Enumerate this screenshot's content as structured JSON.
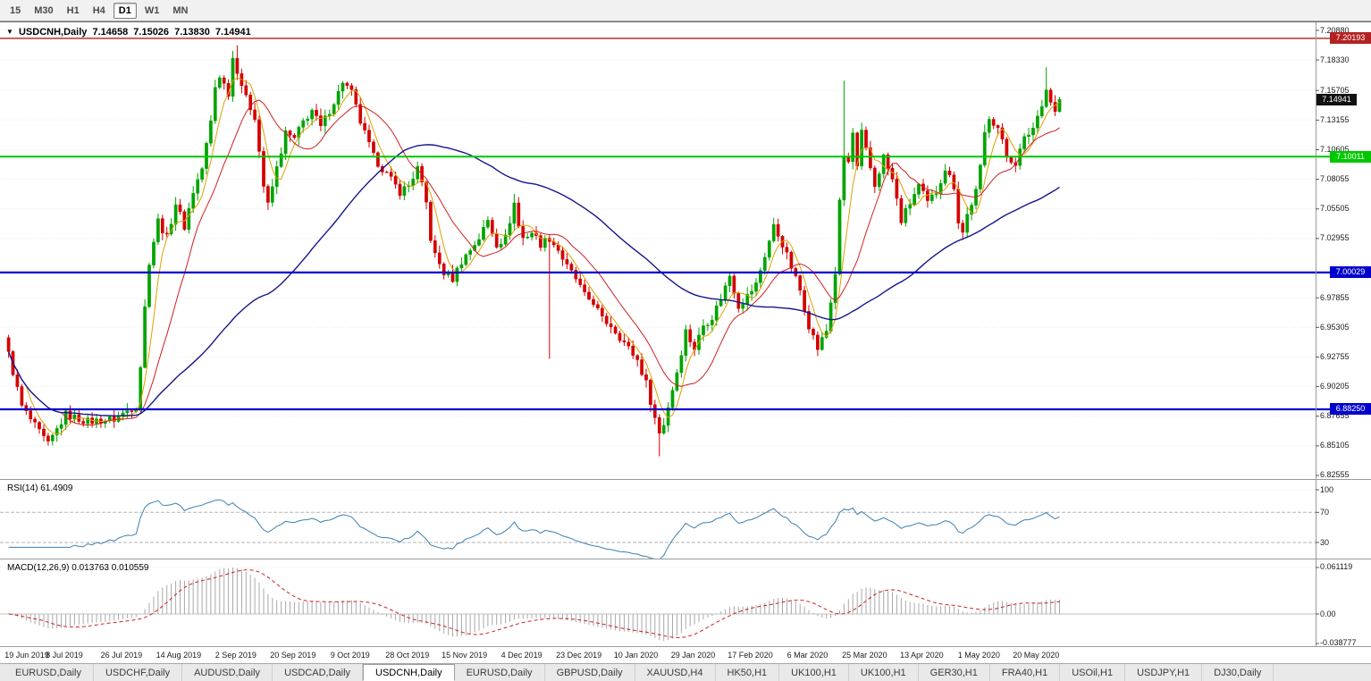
{
  "toolbar": {
    "periods": [
      "15",
      "M30",
      "H1",
      "H4",
      "D1",
      "W1",
      "MN"
    ],
    "active_period": "D1"
  },
  "chart_header": {
    "dropdown_glyph": "▼",
    "symbol": "USDCNH,Daily",
    "open": "7.14658",
    "high": "7.15026",
    "low": "7.13830",
    "close": "7.14941"
  },
  "price_scale": {
    "ticks": [
      "7.20880",
      "7.18330",
      "7.15705",
      "7.13155",
      "7.10605",
      "7.08055",
      "7.05505",
      "7.02955",
      "6.97855",
      "6.95305",
      "6.92755",
      "6.90205",
      "6.87655",
      "6.85105",
      "6.82555"
    ],
    "badges": [
      {
        "label": "7.20193",
        "color": "#b22222",
        "name": "resistance-level-badge"
      },
      {
        "label": "7.14941",
        "color": "#111111",
        "name": "current-price-badge"
      },
      {
        "label": "7.10011",
        "color": "#00c800",
        "name": "support-level-badge-green"
      },
      {
        "label": "7.00029",
        "color": "#0000cd",
        "name": "level-badge-blue-upper"
      },
      {
        "label": "6.88250",
        "color": "#0000cd",
        "name": "level-badge-blue-lower"
      }
    ]
  },
  "rsi_panel": {
    "label": "RSI(14) 61.4909",
    "ticks": [
      "100",
      "70",
      "30"
    ]
  },
  "macd_panel": {
    "label": "MACD(12,26,9) 0.013763 0.010559",
    "ticks": [
      "0.061119",
      "0.00",
      "-0.038777"
    ]
  },
  "time_axis": {
    "labels": [
      "19 Jun 2019",
      "8 Jul 2019",
      "26 Jul 2019",
      "14 Aug 2019",
      "2 Sep 2019",
      "20 Sep 2019",
      "9 Oct 2019",
      "28 Oct 2019",
      "15 Nov 2019",
      "4 Dec 2019",
      "23 Dec 2019",
      "10 Jan 2020",
      "29 Jan 2020",
      "17 Feb 2020",
      "6 Mar 2020",
      "25 Mar 2020",
      "13 Apr 2020",
      "1 May 2020",
      "20 May 2020"
    ]
  },
  "tabs": {
    "items": [
      "EURUSD,Daily",
      "USDCHF,Daily",
      "AUDUSD,Daily",
      "USDCAD,Daily",
      "USDCNH,Daily",
      "EURUSD,Daily",
      "GBPUSD,Daily",
      "XAUUSD,H4",
      "HK50,H1",
      "UK100,H1",
      "UK100,H1",
      "GER30,H1",
      "FRA40,H1",
      "USOil,H1",
      "USDJPY,H1",
      "DJ30,Daily"
    ],
    "active_index": 4
  },
  "chart_data": {
    "type": "candlestick",
    "symbol": "USDCNH",
    "timeframe": "Daily",
    "candle_count": 240,
    "visible_price_range": [
      6.82555,
      7.2088
    ],
    "ohlc_current": {
      "open": 7.14658,
      "high": 7.15026,
      "low": 7.1383,
      "close": 7.14941
    },
    "last_close": 7.14941,
    "horizontal_levels": [
      {
        "price": 7.20193,
        "color": "#b22222",
        "width": 1.4
      },
      {
        "price": 7.10011,
        "color": "#00c800",
        "width": 2
      },
      {
        "price": 7.00029,
        "color": "#0000cd",
        "width": 2.2
      },
      {
        "price": 6.8825,
        "color": "#0000cd",
        "width": 2.2
      }
    ],
    "close_anchors": [
      [
        0,
        6.93
      ],
      [
        3,
        6.885
      ],
      [
        6,
        6.868
      ],
      [
        9,
        6.852
      ],
      [
        13,
        6.878
      ],
      [
        18,
        6.872
      ],
      [
        24,
        6.874
      ],
      [
        29,
        6.886
      ],
      [
        30,
        6.92
      ],
      [
        31,
        6.97
      ],
      [
        32,
        7.01
      ],
      [
        34,
        7.045
      ],
      [
        36,
        7.03
      ],
      [
        38,
        7.06
      ],
      [
        40,
        7.04
      ],
      [
        42,
        7.07
      ],
      [
        44,
        7.09
      ],
      [
        46,
        7.13
      ],
      [
        47,
        7.16
      ],
      [
        48,
        7.17
      ],
      [
        50,
        7.155
      ],
      [
        51,
        7.185
      ],
      [
        52,
        7.175
      ],
      [
        54,
        7.15
      ],
      [
        56,
        7.135
      ],
      [
        58,
        7.075
      ],
      [
        59,
        7.058
      ],
      [
        61,
        7.09
      ],
      [
        63,
        7.12
      ],
      [
        65,
        7.115
      ],
      [
        67,
        7.13
      ],
      [
        69,
        7.14
      ],
      [
        71,
        7.125
      ],
      [
        73,
        7.14
      ],
      [
        75,
        7.155
      ],
      [
        76,
        7.165
      ],
      [
        78,
        7.155
      ],
      [
        80,
        7.13
      ],
      [
        83,
        7.1
      ],
      [
        86,
        7.085
      ],
      [
        89,
        7.07
      ],
      [
        91,
        7.075
      ],
      [
        93,
        7.09
      ],
      [
        95,
        7.06
      ],
      [
        96,
        7.03
      ],
      [
        97,
        7.015
      ],
      [
        99,
        7.0
      ],
      [
        101,
        6.995
      ],
      [
        103,
        7.01
      ],
      [
        105,
        7.02
      ],
      [
        107,
        7.03
      ],
      [
        109,
        7.045
      ],
      [
        111,
        7.025
      ],
      [
        113,
        7.03
      ],
      [
        115,
        7.06
      ],
      [
        116,
        7.04
      ],
      [
        117,
        7.03
      ],
      [
        119,
        7.035
      ],
      [
        121,
        7.025
      ],
      [
        123,
        7.03
      ],
      [
        125,
        7.02
      ],
      [
        127,
        7.005
      ],
      [
        129,
        6.995
      ],
      [
        131,
        6.98
      ],
      [
        133,
        6.975
      ],
      [
        135,
        6.96
      ],
      [
        137,
        6.955
      ],
      [
        139,
        6.945
      ],
      [
        141,
        6.935
      ],
      [
        143,
        6.925
      ],
      [
        145,
        6.905
      ],
      [
        147,
        6.875
      ],
      [
        148,
        6.862
      ],
      [
        149,
        6.87
      ],
      [
        150,
        6.885
      ],
      [
        151,
        6.9
      ],
      [
        152,
        6.915
      ],
      [
        153,
        6.932
      ],
      [
        154,
        6.95
      ],
      [
        155,
        6.942
      ],
      [
        156,
        6.935
      ],
      [
        158,
        6.955
      ],
      [
        160,
        6.962
      ],
      [
        162,
        6.978
      ],
      [
        164,
        6.998
      ],
      [
        165,
        6.985
      ],
      [
        166,
        6.972
      ],
      [
        168,
        6.98
      ],
      [
        170,
        6.99
      ],
      [
        172,
        7.015
      ],
      [
        174,
        7.04
      ],
      [
        176,
        7.025
      ],
      [
        178,
        7.005
      ],
      [
        180,
        6.985
      ],
      [
        182,
        6.955
      ],
      [
        184,
        6.935
      ],
      [
        186,
        6.95
      ],
      [
        188,
        7.0
      ],
      [
        189,
        7.06
      ],
      [
        190,
        7.1
      ],
      [
        191,
        7.095
      ],
      [
        192,
        7.12
      ],
      [
        193,
        7.09
      ],
      [
        194,
        7.12
      ],
      [
        195,
        7.105
      ],
      [
        197,
        7.075
      ],
      [
        199,
        7.1
      ],
      [
        201,
        7.08
      ],
      [
        203,
        7.045
      ],
      [
        205,
        7.06
      ],
      [
        207,
        7.075
      ],
      [
        209,
        7.06
      ],
      [
        211,
        7.07
      ],
      [
        213,
        7.09
      ],
      [
        215,
        7.075
      ],
      [
        216,
        7.045
      ],
      [
        217,
        7.035
      ],
      [
        218,
        7.05
      ],
      [
        220,
        7.07
      ],
      [
        221,
        7.09
      ],
      [
        222,
        7.12
      ],
      [
        223,
        7.135
      ],
      [
        225,
        7.125
      ],
      [
        227,
        7.1
      ],
      [
        229,
        7.095
      ],
      [
        231,
        7.115
      ],
      [
        233,
        7.125
      ],
      [
        234,
        7.135
      ],
      [
        236,
        7.158
      ],
      [
        237,
        7.148
      ],
      [
        238,
        7.138
      ],
      [
        239,
        7.14941
      ]
    ],
    "wick_overrides": {
      "52": {
        "h": 7.196
      },
      "115": {
        "h": 7.068
      },
      "123": {
        "l": 6.926
      },
      "148": {
        "l": 6.842
      },
      "190": {
        "h": 7.1655
      },
      "236": {
        "h": 7.177
      }
    },
    "candle_colors": {
      "up": "#00a400",
      "down": "#d40000"
    },
    "moving_averages": [
      {
        "period": 5,
        "color": "#dfa000"
      },
      {
        "period": 13,
        "color": "#d02020"
      },
      {
        "period": 60,
        "color": "#15158c"
      }
    ],
    "rsi": {
      "period": 14,
      "current": 61.4909,
      "color": "#3c7fb1",
      "dashed_levels": [
        70,
        30
      ],
      "range": [
        0,
        100
      ]
    },
    "macd": {
      "fast": 12,
      "slow": 26,
      "signal": 9,
      "current_main": 0.013763,
      "current_signal": 0.010559,
      "hist_color": "#a8a8a8",
      "signal_color": "#cc2222",
      "axis_ticks": [
        0.061119,
        0,
        -0.038777
      ]
    }
  }
}
